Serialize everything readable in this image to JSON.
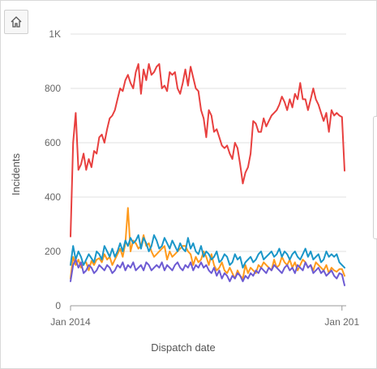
{
  "toolbar": {
    "home_icon": "home-icon"
  },
  "chart_data": {
    "type": "line",
    "title": "",
    "xlabel": "Dispatch date",
    "ylabel": "Incidents",
    "ylim": [
      0,
      1000
    ],
    "yticks": [
      {
        "value": 0,
        "label": "0"
      },
      {
        "value": 200,
        "label": "200"
      },
      {
        "value": 400,
        "label": "400"
      },
      {
        "value": 600,
        "label": "600"
      },
      {
        "value": 800,
        "label": "800"
      },
      {
        "value": 1000,
        "label": "1K"
      }
    ],
    "xticks": [
      {
        "index": 0,
        "label": "Jan 2014"
      },
      {
        "index": 104,
        "label": "Jan 201"
      }
    ],
    "grid": true,
    "legend": "none",
    "series": [
      {
        "color": "#e8403f",
        "values": [
          255,
          600,
          710,
          500,
          520,
          560,
          500,
          540,
          510,
          570,
          560,
          620,
          630,
          600,
          650,
          690,
          700,
          720,
          760,
          800,
          790,
          830,
          850,
          820,
          800,
          860,
          890,
          780,
          870,
          830,
          890,
          850,
          860,
          880,
          890,
          800,
          810,
          790,
          860,
          850,
          860,
          800,
          780,
          820,
          870,
          810,
          880,
          840,
          800,
          790,
          720,
          690,
          620,
          720,
          700,
          640,
          650,
          620,
          590,
          580,
          590,
          560,
          540,
          600,
          580,
          520,
          450,
          490,
          510,
          560,
          680,
          670,
          640,
          640,
          690,
          660,
          680,
          700,
          710,
          720,
          740,
          770,
          750,
          720,
          760,
          730,
          780,
          760,
          820,
          760,
          760,
          720,
          760,
          800,
          760,
          740,
          710,
          680,
          710,
          640,
          720,
          700,
          710,
          700,
          695,
          497
        ]
      },
      {
        "color": "#ff9a1c",
        "values": [
          100,
          180,
          150,
          170,
          140,
          155,
          160,
          130,
          165,
          150,
          170,
          175,
          160,
          190,
          170,
          180,
          150,
          170,
          190,
          210,
          180,
          230,
          360,
          200,
          240,
          230,
          210,
          220,
          260,
          220,
          230,
          200,
          180,
          190,
          200,
          210,
          220,
          170,
          200,
          180,
          190,
          200,
          210,
          220,
          220,
          200,
          190,
          150,
          180,
          160,
          170,
          200,
          180,
          150,
          190,
          150,
          130,
          140,
          160,
          130,
          120,
          140,
          120,
          100,
          130,
          110,
          100,
          150,
          120,
          140,
          130,
          120,
          150,
          140,
          160,
          150,
          140,
          130,
          170,
          140,
          150,
          180,
          160,
          150,
          170,
          140,
          160,
          130,
          150,
          170,
          160,
          140,
          150,
          130,
          160,
          150,
          140,
          130,
          150,
          120,
          140,
          130,
          125,
          135,
          135,
          110
        ]
      },
      {
        "color": "#1a96c8",
        "values": [
          150,
          220,
          170,
          200,
          180,
          150,
          170,
          190,
          175,
          160,
          200,
          190,
          170,
          220,
          200,
          180,
          210,
          180,
          200,
          230,
          200,
          240,
          220,
          250,
          230,
          240,
          260,
          210,
          250,
          230,
          200,
          220,
          260,
          240,
          210,
          220,
          250,
          230,
          210,
          240,
          220,
          200,
          230,
          210,
          200,
          250,
          210,
          230,
          200,
          190,
          220,
          180,
          200,
          190,
          170,
          180,
          200,
          160,
          170,
          190,
          180,
          150,
          160,
          190,
          170,
          180,
          140,
          160,
          170,
          180,
          160,
          170,
          190,
          200,
          170,
          180,
          190,
          200,
          180,
          190,
          210,
          180,
          200,
          190,
          170,
          190,
          200,
          180,
          170,
          190,
          210,
          180,
          200,
          170,
          180,
          190,
          160,
          170,
          200,
          180,
          190,
          180,
          190,
          160,
          150,
          140
        ]
      },
      {
        "color": "#6d5bd3",
        "values": [
          90,
          150,
          170,
          140,
          160,
          120,
          130,
          150,
          140,
          120,
          130,
          150,
          140,
          130,
          150,
          140,
          120,
          130,
          150,
          140,
          160,
          130,
          150,
          140,
          160,
          130,
          140,
          150,
          130,
          160,
          150,
          130,
          140,
          150,
          140,
          160,
          130,
          150,
          140,
          130,
          150,
          160,
          140,
          130,
          150,
          140,
          160,
          130,
          150,
          140,
          160,
          140,
          150,
          130,
          120,
          140,
          110,
          130,
          100,
          120,
          110,
          90,
          110,
          100,
          120,
          110,
          90,
          110,
          100,
          120,
          110,
          130,
          120,
          140,
          130,
          120,
          140,
          130,
          150,
          140,
          130,
          120,
          140,
          150,
          130,
          140,
          120,
          150,
          140,
          130,
          160,
          140,
          150,
          120,
          130,
          140,
          120,
          130,
          110,
          120,
          130,
          110,
          100,
          120,
          115,
          75
        ]
      }
    ]
  }
}
